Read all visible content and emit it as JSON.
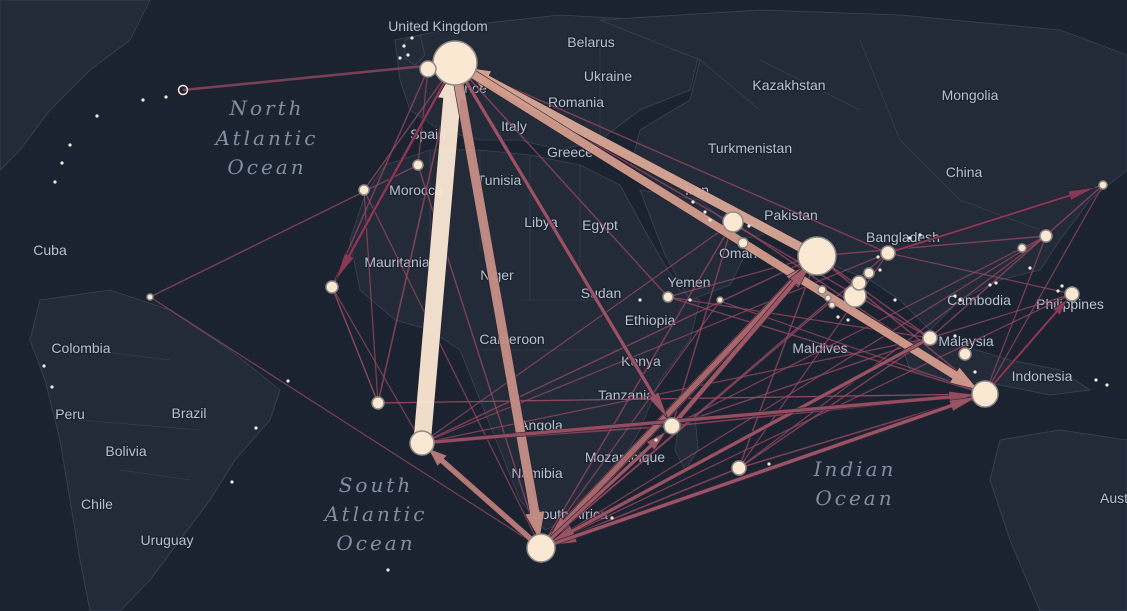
{
  "map": {
    "countries": [
      "United Kingdom",
      "Belarus",
      "Ukraine",
      "Kazakhstan",
      "Mongolia",
      "Romania",
      "Italy",
      "Spain",
      "France",
      "Greece",
      "Turkmenistan",
      "China",
      "Morocco",
      "Tunisia",
      "Iran",
      "Pakistan",
      "Bangladesh",
      "Libya",
      "Egypt",
      "Cuba",
      "Mauritania",
      "Niger",
      "Yemen",
      "Oman",
      "Cambodia",
      "Philippines",
      "Colombia",
      "Sudan",
      "Ethiopia",
      "Cameroon",
      "Kenya",
      "Maldives",
      "Malaysia",
      "Indonesia",
      "Peru",
      "Brazil",
      "Tanzania",
      "Angola",
      "Bolivia",
      "Mozambique",
      "Namibia",
      "Chile",
      "South Africa",
      "Uruguay",
      "Australia"
    ],
    "oceans": [
      {
        "lines": [
          "North",
          "Atlantic",
          "Ocean"
        ]
      },
      {
        "lines": [
          "South",
          "Atlantic",
          "Ocean"
        ]
      },
      {
        "lines": [
          "Indian",
          "Ocean"
        ]
      }
    ]
  },
  "colors": {
    "background": "#1c2330",
    "land": "#232b39",
    "border": "#3a4456",
    "flow_low": "#8c3a56",
    "flow_mid": "#c58f86",
    "flow_high": "#fbe8d3",
    "node": "#fbe8d3"
  }
}
